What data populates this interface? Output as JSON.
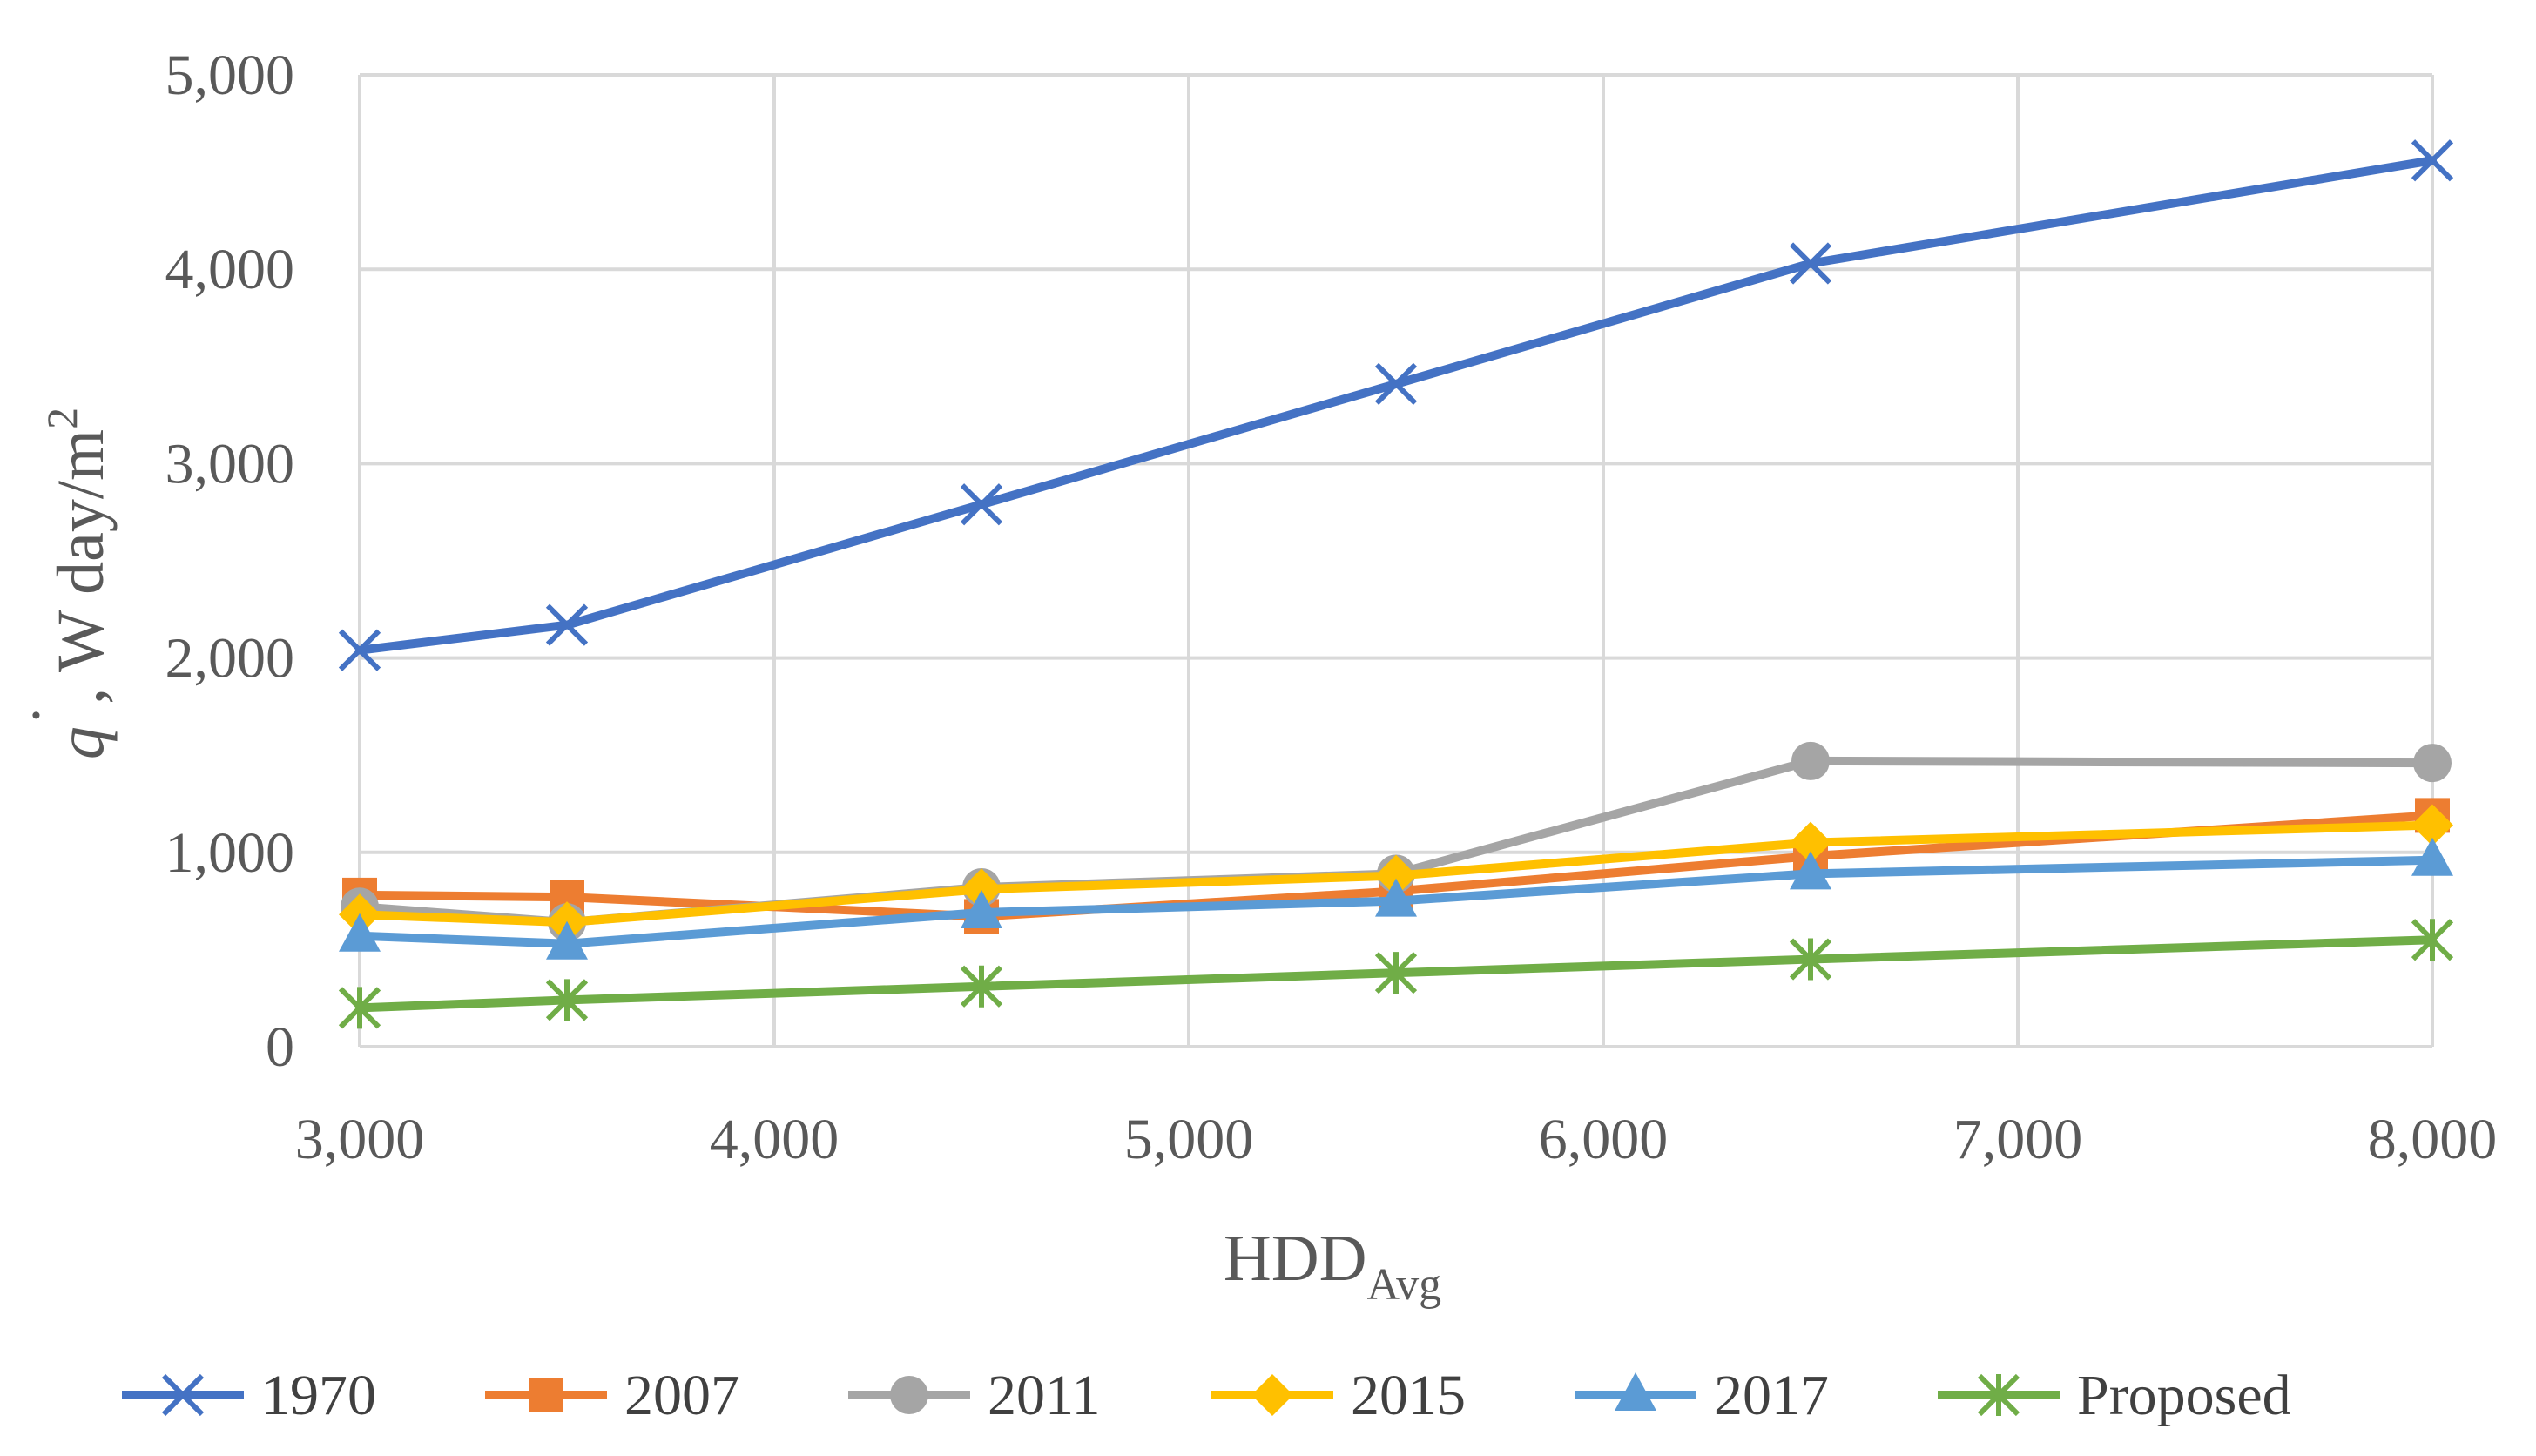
{
  "chart_data": {
    "type": "line",
    "x": [
      3000,
      3500,
      4500,
      5500,
      6500,
      8000
    ],
    "x_tick_labels": [
      "3,000",
      "4,000",
      "5,000",
      "6,000",
      "7,000",
      "8,000"
    ],
    "x_ticks": [
      3000,
      4000,
      5000,
      6000,
      7000,
      8000
    ],
    "y_tick_labels": [
      "0",
      "1,000",
      "2,000",
      "3,000",
      "4,000",
      "5,000"
    ],
    "y_ticks": [
      0,
      1000,
      2000,
      3000,
      4000,
      5000
    ],
    "xlim": [
      3000,
      8000
    ],
    "ylim": [
      0,
      5000
    ],
    "xlabel": {
      "main": "HDD",
      "sub": "Avg"
    },
    "ylabel": {
      "symbol": "q",
      "dot": "˙",
      "text": ", W day/m",
      "sup": "2"
    },
    "grid": true,
    "legend_position": "bottom",
    "series": [
      {
        "name": "1970",
        "color": "#4472C4",
        "marker": "x",
        "values": [
          2040,
          2170,
          2790,
          3410,
          4030,
          4560
        ]
      },
      {
        "name": "2007",
        "color": "#ED7D31",
        "marker": "square",
        "values": [
          780,
          770,
          670,
          800,
          980,
          1190
        ]
      },
      {
        "name": "2011",
        "color": "#A5A5A5",
        "marker": "circle",
        "values": [
          720,
          640,
          820,
          890,
          1470,
          1460
        ]
      },
      {
        "name": "2015",
        "color": "#FFC000",
        "marker": "diamond",
        "values": [
          680,
          640,
          810,
          880,
          1050,
          1140
        ]
      },
      {
        "name": "2017",
        "color": "#5B9BD5",
        "marker": "triangle",
        "values": [
          570,
          530,
          690,
          750,
          890,
          960
        ]
      },
      {
        "name": "Proposed",
        "color": "#70AD47",
        "marker": "asterisk",
        "values": [
          200,
          240,
          310,
          380,
          450,
          550
        ]
      }
    ]
  }
}
